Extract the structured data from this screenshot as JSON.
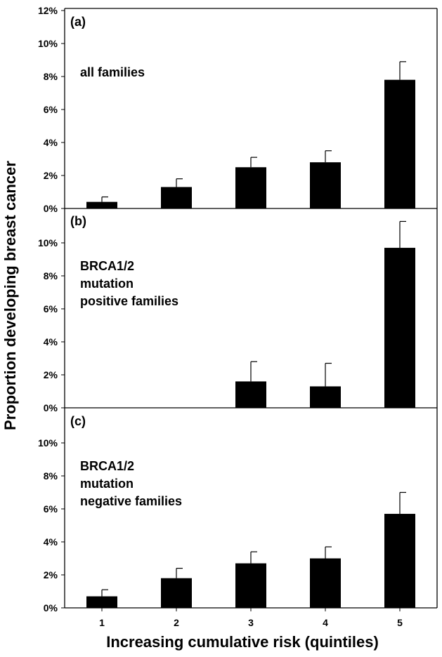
{
  "chart_data": {
    "type": "bar",
    "categories": [
      "1",
      "2",
      "3",
      "4",
      "5"
    ],
    "xlabel": "Increasing cumulative risk (quintiles)",
    "ylabel": "Proportion developing breast cancer",
    "panels": [
      {
        "label": "(a)",
        "annotation": [
          "all families"
        ],
        "ylim": [
          0,
          12
        ],
        "yticks": [
          "0%",
          "2%",
          "4%",
          "6%",
          "8%",
          "10%",
          "12%"
        ],
        "values": [
          0.4,
          1.3,
          2.5,
          2.8,
          7.8
        ],
        "errors": [
          0.3,
          0.5,
          0.6,
          0.7,
          1.1
        ]
      },
      {
        "label": "(b)",
        "annotation": [
          "BRCA1/2",
          "mutation",
          "positive families"
        ],
        "ylim": [
          0,
          12
        ],
        "yticks": [
          "0%",
          "2%",
          "4%",
          "6%",
          "8%",
          "10%"
        ],
        "values": [
          0,
          0,
          1.6,
          1.3,
          9.7
        ],
        "errors": [
          0,
          0,
          1.2,
          1.4,
          1.6
        ]
      },
      {
        "label": "(c)",
        "annotation": [
          "BRCA1/2",
          "mutation",
          "negative families"
        ],
        "ylim": [
          0,
          12
        ],
        "yticks": [
          "0%",
          "2%",
          "4%",
          "6%",
          "8%",
          "10%"
        ],
        "values": [
          0.7,
          1.8,
          2.7,
          3.0,
          5.7
        ],
        "errors": [
          0.4,
          0.6,
          0.7,
          0.7,
          1.3
        ]
      }
    ],
    "colors": {
      "bar": "#000000",
      "axis": "#000000"
    }
  }
}
